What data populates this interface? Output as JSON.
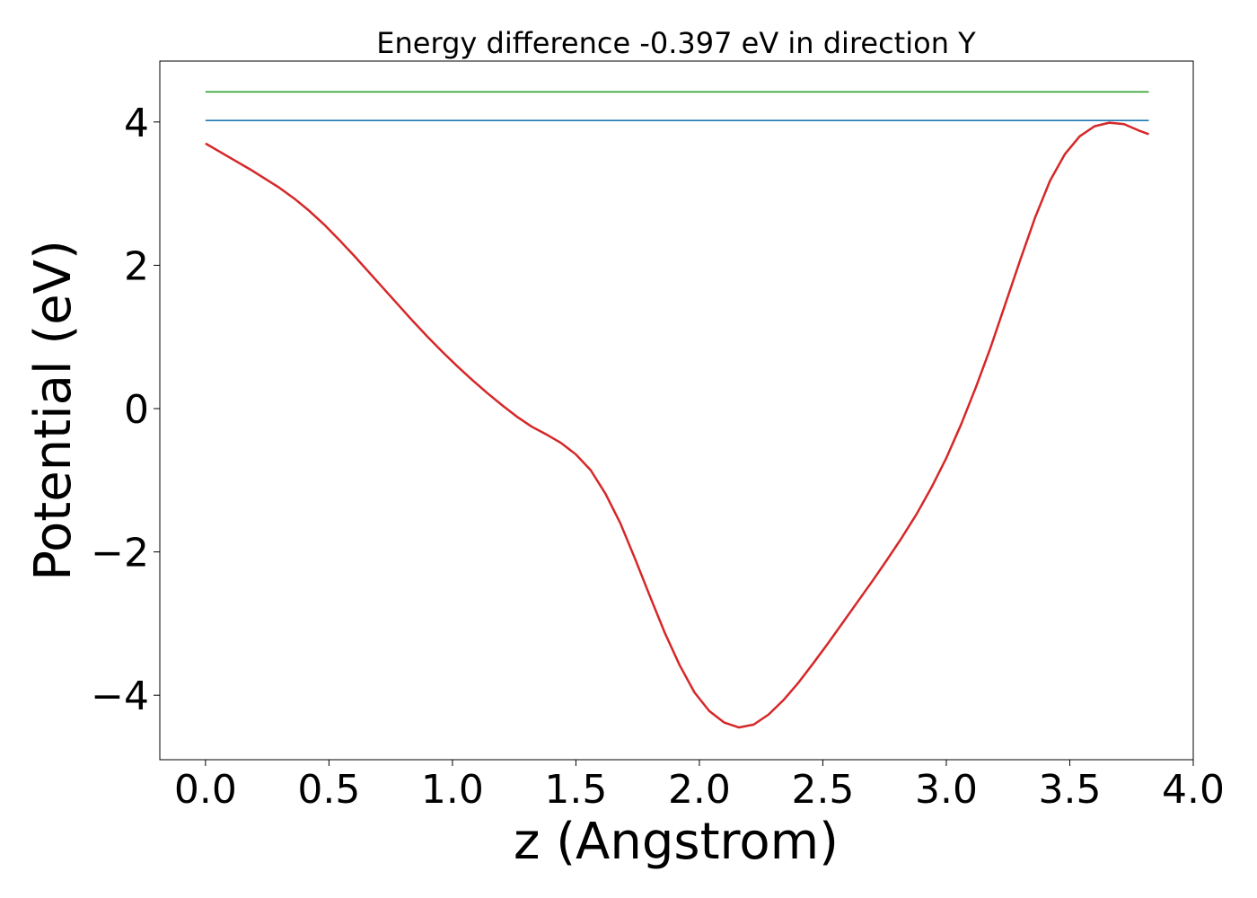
{
  "chart_data": {
    "type": "line",
    "title": "Energy difference -0.397 eV in direction Y",
    "xlabel": "z (Angstrom)",
    "ylabel": "Potential (eV)",
    "xlim": [
      -0.185,
      4.0
    ],
    "ylim": [
      -4.9,
      4.85
    ],
    "grid": false,
    "xticks": [
      0.0,
      0.5,
      1.0,
      1.5,
      2.0,
      2.5,
      3.0,
      3.5,
      4.0
    ],
    "xtick_labels": [
      "0.0",
      "0.5",
      "1.0",
      "1.5",
      "2.0",
      "2.5",
      "3.0",
      "3.5",
      "4.0"
    ],
    "yticks": [
      -4,
      -2,
      0,
      2,
      4
    ],
    "ytick_labels": [
      "−4",
      "−2",
      "0",
      "2",
      "4"
    ],
    "series": [
      {
        "color": "#d62728",
        "x": [
          0.0,
          0.06,
          0.12,
          0.18,
          0.24,
          0.3,
          0.36,
          0.42,
          0.48,
          0.54,
          0.6,
          0.66,
          0.72,
          0.78,
          0.84,
          0.9,
          0.96,
          1.02,
          1.08,
          1.14,
          1.2,
          1.26,
          1.32,
          1.38,
          1.44,
          1.5,
          1.56,
          1.62,
          1.68,
          1.74,
          1.8,
          1.86,
          1.92,
          1.98,
          2.04,
          2.1,
          2.16,
          2.22,
          2.28,
          2.34,
          2.4,
          2.46,
          2.52,
          2.58,
          2.64,
          2.7,
          2.76,
          2.82,
          2.88,
          2.94,
          3.0,
          3.06,
          3.12,
          3.18,
          3.24,
          3.3,
          3.36,
          3.42,
          3.48,
          3.54,
          3.6,
          3.66,
          3.72,
          3.78,
          3.82
        ],
        "y": [
          3.7,
          3.58,
          3.46,
          3.34,
          3.21,
          3.08,
          2.93,
          2.76,
          2.57,
          2.36,
          2.14,
          1.91,
          1.68,
          1.45,
          1.22,
          1.0,
          0.79,
          0.59,
          0.4,
          0.22,
          0.05,
          -0.11,
          -0.25,
          -0.36,
          -0.48,
          -0.64,
          -0.86,
          -1.19,
          -1.6,
          -2.1,
          -2.62,
          -3.13,
          -3.58,
          -3.96,
          -4.22,
          -4.38,
          -4.45,
          -4.41,
          -4.27,
          -4.07,
          -3.83,
          -3.56,
          -3.28,
          -2.99,
          -2.7,
          -2.41,
          -2.11,
          -1.8,
          -1.47,
          -1.1,
          -0.69,
          -0.22,
          0.3,
          0.86,
          1.47,
          2.08,
          2.67,
          3.18,
          3.55,
          3.8,
          3.94,
          3.99,
          3.97,
          3.88,
          3.83
        ]
      },
      {
        "color": "#1f77b4",
        "x": [
          0.0,
          3.82
        ],
        "y": [
          4.02,
          4.02
        ]
      },
      {
        "color": "#2ca02c",
        "x": [
          0.0,
          3.82
        ],
        "y": [
          4.42,
          4.42
        ]
      }
    ]
  }
}
